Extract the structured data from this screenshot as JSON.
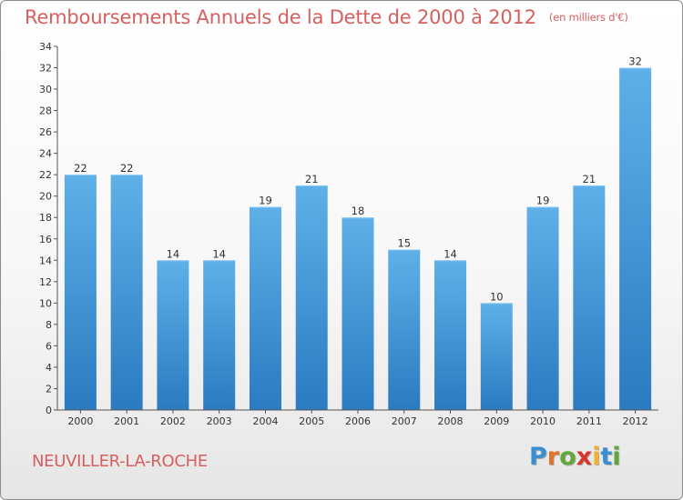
{
  "title": "Remboursements Annuels de la Dette de 2000 à 2012",
  "unit": "(en milliers d'€)",
  "commune": "NEUVILLER-LA-ROCHE",
  "logo": {
    "letters": [
      "P",
      "r",
      "o",
      "x",
      "i",
      "t",
      "i"
    ],
    "colors": [
      "#3b8fd0",
      "#e0762a",
      "#61a83a",
      "#d8352e",
      "#f2b22a",
      "#3b8fd0",
      "#61a83a"
    ]
  },
  "colors": {
    "bar_top": "#5fb0e8",
    "bar_bottom": "#2a7bc0",
    "title": "#d66060"
  },
  "chart_data": {
    "type": "bar",
    "title": "Remboursements Annuels de la Dette de 2000 à 2012",
    "xlabel": "",
    "ylabel": "",
    "categories": [
      "2000",
      "2001",
      "2002",
      "2003",
      "2004",
      "2005",
      "2006",
      "2007",
      "2008",
      "2009",
      "2010",
      "2011",
      "2012"
    ],
    "values": [
      22,
      22,
      14,
      14,
      19,
      21,
      18,
      15,
      14,
      10,
      19,
      21,
      32
    ],
    "ylim": [
      0,
      34
    ],
    "yticks": [
      0,
      2,
      4,
      6,
      8,
      10,
      12,
      14,
      16,
      18,
      20,
      22,
      24,
      26,
      28,
      30,
      32,
      34
    ],
    "grid": false
  }
}
